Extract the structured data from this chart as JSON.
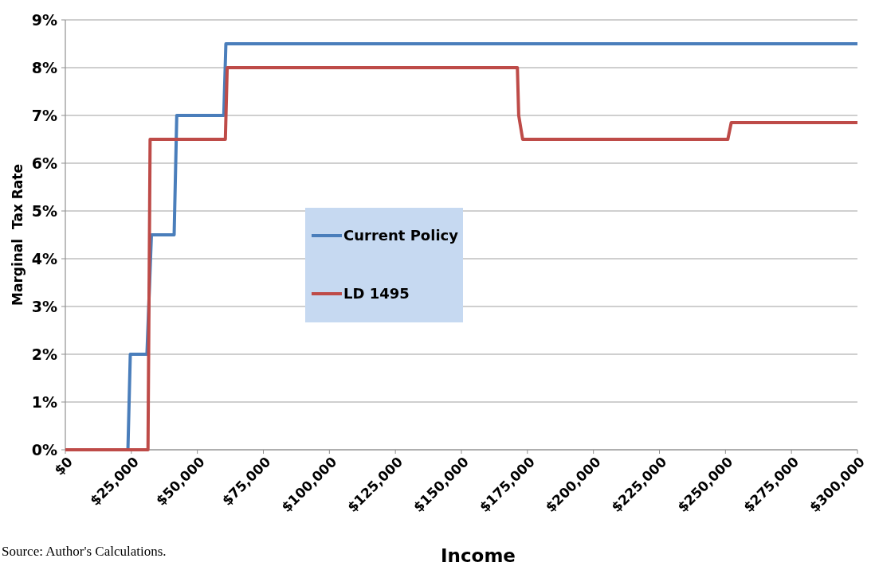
{
  "chart_data": {
    "type": "line",
    "xlabel": "Income",
    "ylabel": "Marginal  Tax Rate",
    "annotations": [
      "Source:  Author's Calculations."
    ],
    "xlim": [
      0,
      300000
    ],
    "xticks": [
      {
        "value": 0,
        "label": "$0"
      },
      {
        "value": 25000,
        "label": "$25,000"
      },
      {
        "value": 50000,
        "label": "$50,000"
      },
      {
        "value": 75000,
        "label": "$75,000"
      },
      {
        "value": 100000,
        "label": "$100,000"
      },
      {
        "value": 125000,
        "label": "$125,000"
      },
      {
        "value": 150000,
        "label": "$150,000"
      },
      {
        "value": 175000,
        "label": "$175,000"
      },
      {
        "value": 200000,
        "label": "$200,000"
      },
      {
        "value": 225000,
        "label": "$225,000"
      },
      {
        "value": 250000,
        "label": "$250,000"
      },
      {
        "value": 275000,
        "label": "$275,000"
      },
      {
        "value": 300000,
        "label": "$300,000"
      }
    ],
    "ylim": [
      0,
      9
    ],
    "yticks": [
      {
        "value": 0,
        "label": "0%"
      },
      {
        "value": 1,
        "label": "1%"
      },
      {
        "value": 2,
        "label": "2%"
      },
      {
        "value": 3,
        "label": "3%"
      },
      {
        "value": 4,
        "label": "4%"
      },
      {
        "value": 5,
        "label": "5%"
      },
      {
        "value": 6,
        "label": "6%"
      },
      {
        "value": 7,
        "label": "7%"
      },
      {
        "value": 8,
        "label": "8%"
      },
      {
        "value": 9,
        "label": "9%"
      }
    ],
    "grid": "y",
    "legend": "center",
    "line_style": "solid",
    "series": [
      {
        "name": "Current Policy",
        "color": "#4a7ebb",
        "x": [
          0,
          23700,
          24600,
          30900,
          32600,
          41200,
          42200,
          60000,
          60800,
          300000
        ],
        "values": [
          0,
          0,
          2,
          2,
          4.5,
          4.5,
          7,
          7,
          8.5,
          8.5
        ]
      },
      {
        "name": "LD 1495",
        "color": "#be4b48",
        "x": [
          0,
          31300,
          32100,
          60600,
          61300,
          171200,
          171700,
          173200,
          250900,
          252200,
          300000
        ],
        "values": [
          0,
          0,
          6.5,
          6.5,
          8,
          8,
          7,
          6.5,
          6.5,
          6.85,
          6.85
        ]
      }
    ]
  }
}
